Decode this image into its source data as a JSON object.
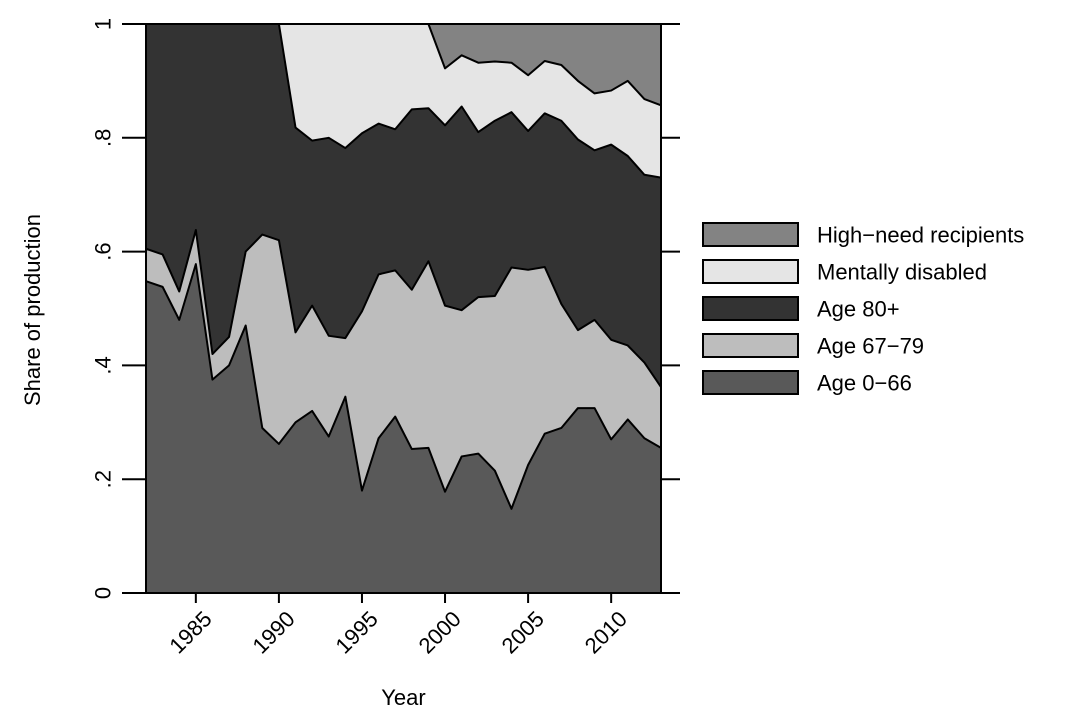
{
  "chart_data": {
    "type": "area",
    "stacked": true,
    "xlabel": "Year",
    "ylabel": "Share of production",
    "xlim": [
      1982,
      2013
    ],
    "ylim": [
      0,
      1
    ],
    "x_ticks": [
      1985,
      1990,
      1995,
      2000,
      2005,
      2010
    ],
    "x_tick_labels": [
      "1985",
      "1990",
      "1995",
      "2000",
      "2005",
      "2010"
    ],
    "y_ticks": [
      0,
      0.2,
      0.4,
      0.6,
      0.8,
      1
    ],
    "y_tick_labels": [
      "0",
      ".2",
      ".4",
      ".6",
      ".8",
      "1"
    ],
    "grid": false,
    "legend_position": "right",
    "x": [
      1982,
      1983,
      1984,
      1985,
      1986,
      1987,
      1988,
      1989,
      1990,
      1991,
      1992,
      1993,
      1994,
      1995,
      1996,
      1997,
      1998,
      1999,
      2000,
      2001,
      2002,
      2003,
      2004,
      2005,
      2006,
      2007,
      2008,
      2009,
      2010,
      2011,
      2012,
      2013
    ],
    "series": [
      {
        "name": "Age 0−66",
        "color": "#595959",
        "cumulative": [
          0.548,
          0.538,
          0.48,
          0.578,
          0.375,
          0.4,
          0.47,
          0.29,
          0.262,
          0.3,
          0.32,
          0.275,
          0.345,
          0.18,
          0.272,
          0.31,
          0.253,
          0.255,
          0.178,
          0.24,
          0.245,
          0.215,
          0.148,
          0.225,
          0.28,
          0.29,
          0.325,
          0.325,
          0.27,
          0.305,
          0.272,
          0.255
        ]
      },
      {
        "name": "Age 67−79",
        "color": "#bdbdbd",
        "cumulative": [
          0.605,
          0.595,
          0.53,
          0.638,
          0.42,
          0.45,
          0.6,
          0.63,
          0.62,
          0.458,
          0.505,
          0.452,
          0.448,
          0.495,
          0.56,
          0.567,
          0.533,
          0.583,
          0.505,
          0.497,
          0.52,
          0.522,
          0.572,
          0.568,
          0.573,
          0.508,
          0.462,
          0.48,
          0.445,
          0.435,
          0.405,
          0.362
        ]
      },
      {
        "name": "Age 80+",
        "color": "#333333",
        "cumulative": [
          1,
          1,
          1,
          1,
          1,
          1,
          1,
          1,
          1,
          0.818,
          0.795,
          0.8,
          0.782,
          0.808,
          0.825,
          0.815,
          0.85,
          0.852,
          0.822,
          0.855,
          0.81,
          0.83,
          0.845,
          0.812,
          0.843,
          0.83,
          0.797,
          0.778,
          0.788,
          0.768,
          0.735,
          0.73
        ]
      },
      {
        "name": "Mentally disabled",
        "color": "#e5e5e5",
        "cumulative": [
          1,
          1,
          1,
          1,
          1,
          1,
          1,
          1,
          1,
          1,
          1,
          1,
          1,
          1,
          1,
          1,
          1,
          1,
          0.922,
          0.945,
          0.932,
          0.934,
          0.932,
          0.91,
          0.935,
          0.928,
          0.9,
          0.878,
          0.883,
          0.9,
          0.868,
          0.857
        ]
      },
      {
        "name": "High−need recipients",
        "color": "#838383",
        "cumulative": [
          1,
          1,
          1,
          1,
          1,
          1,
          1,
          1,
          1,
          1,
          1,
          1,
          1,
          1,
          1,
          1,
          1,
          1,
          1,
          1,
          1,
          1,
          1,
          1,
          1,
          1,
          1,
          1,
          1,
          1,
          1,
          1
        ]
      }
    ],
    "legend_order": [
      "High−need recipients",
      "Mentally disabled",
      "Age 80+",
      "Age 67−79",
      "Age 0−66"
    ]
  }
}
